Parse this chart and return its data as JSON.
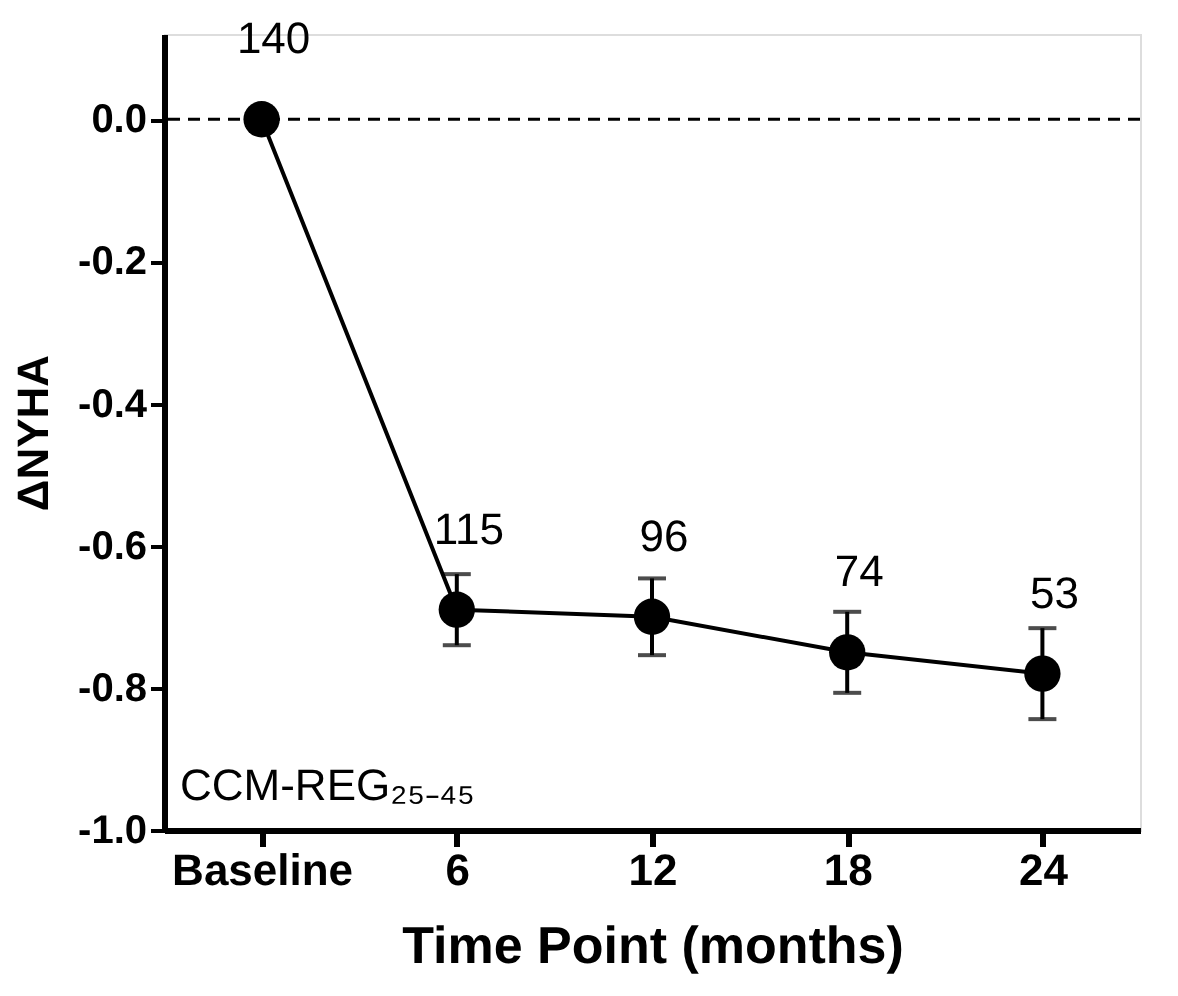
{
  "chart_data": {
    "type": "line",
    "xlabel": "Time Point (months)",
    "ylabel": "ΔNYHA",
    "categories": [
      "Baseline",
      "6",
      "12",
      "18",
      "24"
    ],
    "series": [
      {
        "color": "#000000",
        "values": [
          0,
          -0.69,
          -0.7,
          -0.75,
          -0.78
        ],
        "errors": [
          null,
          0.05,
          0.054,
          0.057,
          0.064
        ]
      }
    ],
    "ylim": [
      -1.0,
      0.12
    ],
    "yticks": [
      {
        "value": -1.0,
        "label": "-1.0"
      },
      {
        "value": -0.8,
        "label": "-0.8"
      },
      {
        "value": -0.6,
        "label": "-0.6"
      },
      {
        "value": -0.4,
        "label": "-0.4"
      },
      {
        "value": -0.2,
        "label": "-0.2"
      },
      {
        "value": 0.0,
        "label": "0.0"
      }
    ],
    "ref_lines": [
      {
        "axis": "y",
        "value": 0,
        "color": "#000000",
        "line_style": "dashed"
      }
    ],
    "marker": "circle",
    "line_style": "solid",
    "grid": false,
    "annotations": [
      {
        "text": "140",
        "x": "Baseline",
        "y": 0
      },
      {
        "text": "115",
        "x": "6",
        "y": -0.69
      },
      {
        "text": "96",
        "x": "12",
        "y": -0.7
      },
      {
        "text": "74",
        "x": "18",
        "y": -0.75
      },
      {
        "text": "53",
        "x": "24",
        "y": -0.78
      },
      "CCM-REG₂₅₋₄₅"
    ]
  }
}
